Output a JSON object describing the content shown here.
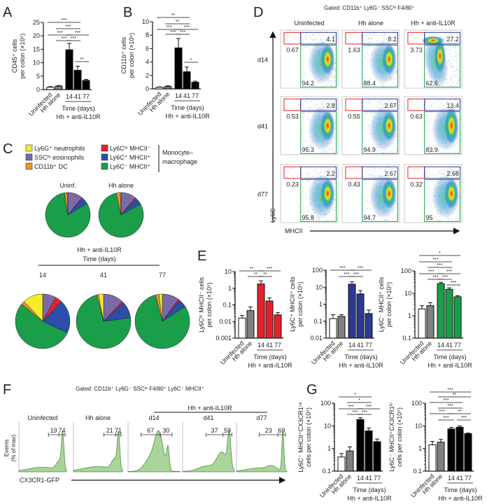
{
  "panel_labels": {
    "A": "A",
    "B": "B",
    "C": "C",
    "D": "D",
    "E": "E",
    "F": "F",
    "G": "G"
  },
  "common": {
    "uninfected": "Uninfected",
    "hh_alone": "Hh alone",
    "days": [
      "14",
      "41",
      "77"
    ],
    "time_days": "Time (days)",
    "treatment": "Hh + anti-IL10R"
  },
  "chart_data": [
    {
      "id": "A",
      "type": "bar",
      "ylabel": [
        "CD45⁺ cells",
        "per colon (×10⁶)"
      ],
      "yscale": "linear",
      "ylim": [
        0,
        25
      ],
      "yticks": [
        "0",
        "5",
        "10",
        "15",
        "20",
        "25"
      ],
      "categories": [
        "Uninfected",
        "Hh alone",
        "14",
        "41",
        "77"
      ],
      "values": [
        0.9,
        1.3,
        14.8,
        7.2,
        3.4
      ],
      "errors": [
        0.2,
        0.2,
        2.4,
        1.5,
        0.4
      ],
      "colors": [
        "#ffffff",
        "#808080",
        "#000000",
        "#000000",
        "#000000"
      ],
      "significance": [
        {
          "from": 0,
          "to": 3,
          "label": "***"
        },
        {
          "from": 1,
          "to": 3,
          "label": "***"
        },
        {
          "from": 0,
          "to": 2,
          "label": "***"
        },
        {
          "from": 2,
          "to": 4,
          "label": "***"
        },
        {
          "from": 1,
          "to": 2,
          "label": "***"
        },
        {
          "from": 2,
          "to": 3,
          "label": "***"
        },
        {
          "from": 3,
          "to": 4,
          "label": "**"
        }
      ]
    },
    {
      "id": "B",
      "type": "bar",
      "ylabel": [
        "CD11b⁺ cells",
        "per colon (×10⁶)"
      ],
      "yscale": "linear",
      "ylim": [
        0,
        10
      ],
      "yticks": [
        "0",
        "2",
        "4",
        "6",
        "8",
        "10"
      ],
      "categories": [
        "Uninfected",
        "Hh alone",
        "14",
        "41",
        "77"
      ],
      "values": [
        0.25,
        0.35,
        6.1,
        2.55,
        1.0
      ],
      "errors": [
        0.05,
        0.1,
        1.4,
        0.7,
        0.15
      ],
      "colors": [
        "#ffffff",
        "#808080",
        "#000000",
        "#000000",
        "#000000"
      ],
      "significance": [
        {
          "from": 0,
          "to": 3,
          "label": "**"
        },
        {
          "from": 1,
          "to": 3,
          "label": "**"
        },
        {
          "from": 0,
          "to": 2,
          "label": "***"
        },
        {
          "from": 2,
          "to": 4,
          "label": "***"
        },
        {
          "from": 1,
          "to": 2,
          "label": "***"
        },
        {
          "from": 2,
          "to": 3,
          "label": "***"
        },
        {
          "from": 3,
          "to": 4,
          "label": "*"
        }
      ]
    },
    {
      "id": "E1",
      "type": "bar",
      "ylabel": [
        "Ly6Cʰⁱ MHCII⁻ cells",
        "per colon (×10⁵)"
      ],
      "yscale": "log",
      "ylim": [
        0.001,
        10
      ],
      "yticks": [
        "0.001",
        "0.01",
        "0.1",
        "1",
        "10"
      ],
      "categories": [
        "Uninfected",
        "Hh alone",
        "14",
        "41",
        "77"
      ],
      "values": [
        0.016,
        0.045,
        1.8,
        0.17,
        0.025
      ],
      "errors": [
        0.007,
        0.03,
        1.0,
        0.09,
        0.009
      ],
      "colors": [
        "#ffffff",
        "#808080",
        "#e8202a",
        "#e8202a",
        "#e8202a"
      ],
      "significance": [
        {
          "from": 0,
          "to": 2,
          "label": "**"
        },
        {
          "from": 2,
          "to": 4,
          "label": "***"
        },
        {
          "from": 1,
          "to": 2,
          "label": "**"
        },
        {
          "from": 2,
          "to": 3,
          "label": "**"
        }
      ]
    },
    {
      "id": "E2",
      "type": "bar",
      "ylabel": [
        "Ly6C⁺ MHCII⁺ cells",
        "per colon (×10⁵)"
      ],
      "yscale": "log",
      "ylim": [
        0.01,
        100
      ],
      "yticks": [
        "0.01",
        "0.1",
        "1",
        "10",
        "100"
      ],
      "categories": [
        "Uninfected",
        "Hh alone",
        "14",
        "41",
        "77"
      ],
      "values": [
        0.14,
        0.19,
        15,
        4,
        0.28
      ],
      "errors": [
        0.1,
        0.05,
        6,
        2.3,
        0.17
      ],
      "colors": [
        "#ffffff",
        "#808080",
        "#2b3990",
        "#2b3990",
        "#2b3990"
      ],
      "significance": [
        {
          "from": 0,
          "to": 2,
          "label": "***"
        },
        {
          "from": 2,
          "to": 4,
          "label": "***"
        },
        {
          "from": 1,
          "to": 2,
          "label": "***"
        },
        {
          "from": 2,
          "to": 3,
          "label": "***"
        }
      ]
    },
    {
      "id": "E3",
      "type": "bar",
      "ylabel": [
        "Ly6C⁻ MHCII⁺ cells",
        "per colon (×10⁵)"
      ],
      "yscale": "log",
      "ylim": [
        0.1,
        100
      ],
      "yticks": [
        "0.1",
        "1",
        "10",
        "100"
      ],
      "categories": [
        "Uninfected",
        "Hh alone",
        "14",
        "41",
        "77"
      ],
      "values": [
        2.0,
        2.8,
        27,
        15,
        7
      ],
      "errors": [
        0.8,
        1.0,
        4,
        2.5,
        0.8
      ],
      "colors": [
        "#ffffff",
        "#808080",
        "#1a9e4a",
        "#1a9e4a",
        "#1a9e4a"
      ],
      "significance": [
        {
          "from": 0,
          "to": 4,
          "label": "*"
        },
        {
          "from": 0,
          "to": 3,
          "label": "***"
        },
        {
          "from": 1,
          "to": 3,
          "label": "***"
        },
        {
          "from": 0,
          "to": 2,
          "label": "***"
        },
        {
          "from": 2,
          "to": 4,
          "label": "***"
        },
        {
          "from": 1,
          "to": 2,
          "label": "***"
        },
        {
          "from": 2,
          "to": 3,
          "label": "***"
        },
        {
          "from": 3,
          "to": 4,
          "label": "***"
        }
      ]
    },
    {
      "id": "G1",
      "type": "bar",
      "ylabel": [
        "Ly6C⁻ MHCII⁺CX3CR1ⁱⁿᵗ",
        "cells per colon (×10⁵)"
      ],
      "yscale": "log",
      "ylim": [
        0.1,
        100
      ],
      "yticks": [
        "0.1",
        "1",
        "10",
        "100"
      ],
      "categories": [
        "Uninfected",
        "Hh alone",
        "14",
        "41",
        "77"
      ],
      "values": [
        0.42,
        0.78,
        19,
        6,
        2
      ],
      "errors": [
        0.18,
        0.4,
        4,
        2,
        0.6
      ],
      "colors": [
        "#ffffff",
        "#808080",
        "#000000",
        "#000000",
        "#000000"
      ],
      "significance": [
        {
          "from": 0,
          "to": 3,
          "label": "*"
        },
        {
          "from": 1,
          "to": 3,
          "label": "*"
        },
        {
          "from": 0,
          "to": 2,
          "label": "***"
        },
        {
          "from": 2,
          "to": 4,
          "label": "***"
        },
        {
          "from": 1,
          "to": 2,
          "label": "***"
        },
        {
          "from": 2,
          "to": 3,
          "label": "***"
        }
      ]
    },
    {
      "id": "G2",
      "type": "bar",
      "ylabel": [
        "Ly6C⁻ MHCII⁺CX3CR1ʰⁱ",
        "cells per colon (×10⁵)"
      ],
      "yscale": "log",
      "ylim": [
        0.1,
        100
      ],
      "yticks": [
        "0.1",
        "1",
        "10",
        "100"
      ],
      "categories": [
        "Uninfected",
        "Hh alone",
        "14",
        "41",
        "77"
      ],
      "values": [
        1.45,
        1.9,
        7.3,
        8.7,
        4.5
      ],
      "errors": [
        0.6,
        0.6,
        1.2,
        1.2,
        0.3
      ],
      "colors": [
        "#ffffff",
        "#808080",
        "#000000",
        "#000000",
        "#000000"
      ],
      "significance": [
        {
          "from": 0,
          "to": 4,
          "label": "***"
        },
        {
          "from": 1,
          "to": 4,
          "label": "**"
        },
        {
          "from": 0,
          "to": 3,
          "label": "***"
        },
        {
          "from": 1,
          "to": 3,
          "label": "***"
        },
        {
          "from": 0,
          "to": 2,
          "label": "***"
        },
        {
          "from": 2,
          "to": 4,
          "label": "**"
        },
        {
          "from": 1,
          "to": 2,
          "label": "***"
        },
        {
          "from": 3,
          "to": 4,
          "label": "***"
        }
      ]
    },
    {
      "id": "C",
      "type": "pie",
      "legend": [
        "Ly6G⁺ neutrophils",
        "SSCʰⁱ eosinophils",
        "CD11b⁺ DC",
        "Ly6Cʰⁱ MHCII⁻",
        "Ly6C⁺ MHCII⁺",
        "Ly6C⁻ MHCII⁺"
      ],
      "colors": [
        "#f5ec2a",
        "#7b6aa8",
        "#f0922b",
        "#e8202a",
        "#2b4fa8",
        "#1a9e4a"
      ],
      "bracket_label": [
        "Monocyte–",
        "macrophage"
      ],
      "pies": [
        {
          "label": "Uninf.",
          "values": [
            0.5,
            11,
            2,
            0.5,
            5,
            81
          ]
        },
        {
          "label": "Hh alone",
          "values": [
            0.5,
            11,
            3,
            1,
            5,
            79.5
          ]
        },
        {
          "label": "14",
          "values": [
            12,
            8,
            2,
            4,
            20,
            54
          ]
        },
        {
          "label": "41",
          "values": [
            3,
            12,
            1,
            1,
            10,
            73
          ]
        },
        {
          "label": "77",
          "values": [
            2,
            10,
            2,
            1,
            5,
            80
          ]
        }
      ],
      "group_label": "Hh + anti-IL10R",
      "time_label": "Time (days)"
    },
    {
      "id": "D",
      "type": "scatter",
      "title": "Gated: CD11b⁺ Ly6G⁻ SSCˡᵒ F4/80⁺",
      "columns": [
        "Uninfected",
        "Hh alone",
        "Hh + anti-IL10R"
      ],
      "rows": [
        "d14",
        "d41",
        "d77"
      ],
      "xlabel": "MHCII",
      "ylabel": "Ly6C",
      "gates": [
        [
          {
            "red": "0.67",
            "blue": "4.1",
            "green": "94.2"
          },
          {
            "red": "1.63",
            "blue": "8.2",
            "green": "88.4"
          },
          {
            "red": "3.73",
            "blue": "27.2",
            "green": "62.6"
          }
        ],
        [
          {
            "red": "0.53",
            "blue": "2.8",
            "green": "95.3"
          },
          {
            "red": "0.55",
            "blue": "2.67",
            "green": "94.9"
          },
          {
            "red": "0.63",
            "blue": "13.4",
            "green": "83.9"
          }
        ],
        [
          {
            "red": "0.23",
            "blue": "2.2",
            "green": "95.8"
          },
          {
            "red": "0.43",
            "blue": "2.67",
            "green": "94.7"
          },
          {
            "red": "0.32",
            "blue": "2.68",
            "green": "95"
          }
        ]
      ]
    },
    {
      "id": "F",
      "type": "area",
      "title": "Gated: CD11b⁺ Ly6G⁻ SSCˡᵒ F4/80⁺ Ly6C⁻ MHCII⁺",
      "group_label": "Hh + anti-IL10R",
      "ylabel": [
        "Events",
        "(% of max)"
      ],
      "xlabel": "CX3CR1-GFP",
      "panels": [
        {
          "label": "Uninfected",
          "int": "19",
          "hi": "74"
        },
        {
          "label": "Hh alone",
          "int": "21",
          "hi": "71"
        },
        {
          "label": "d14",
          "int": "67",
          "hi": "30"
        },
        {
          "label": "d41",
          "int": "37",
          "hi": "59"
        },
        {
          "label": "d77",
          "int": "23",
          "hi": "69"
        }
      ],
      "fill": "#a9d49a",
      "stroke": "#4f8f45"
    }
  ]
}
